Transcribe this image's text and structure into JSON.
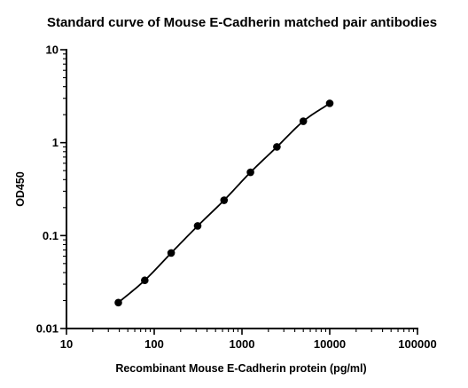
{
  "chart_data": {
    "type": "scatter",
    "title": "Standard curve of Mouse E-Cadherin matched pair antibodies",
    "xlabel": "Recombinant Mouse E-Cadherin protein (pg/ml)",
    "ylabel": "OD450",
    "xscale": "log",
    "yscale": "log",
    "xlim": [
      10,
      100000
    ],
    "ylim": [
      0.01,
      10
    ],
    "x_ticks": [
      "10",
      "100",
      "1000",
      "10000",
      "100000"
    ],
    "y_ticks": [
      "0.01",
      "0.1",
      "1",
      "10"
    ],
    "grid": false,
    "fit_line": true,
    "series": [
      {
        "x": [
          39,
          78,
          156,
          312.5,
          625,
          1250,
          2500,
          5000,
          10000
        ],
        "y": [
          0.019,
          0.033,
          0.065,
          0.127,
          0.24,
          0.48,
          0.9,
          1.7,
          2.65
        ]
      }
    ]
  }
}
